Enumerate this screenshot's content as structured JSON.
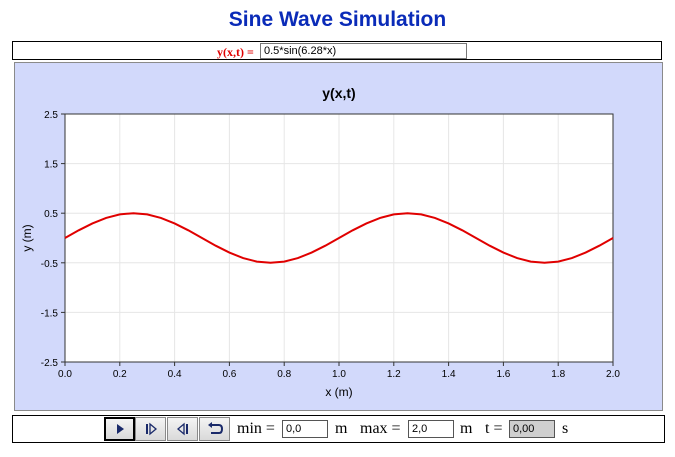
{
  "title": "Sine Wave Simulation",
  "function_bar": {
    "label": "y(x,t) =",
    "expression": "0.5*sin(6.28*x)"
  },
  "controls": {
    "buttons": [
      {
        "name": "play-button",
        "icon": "play-icon"
      },
      {
        "name": "step-forward-button",
        "icon": "step-forward-icon"
      },
      {
        "name": "step-back-button",
        "icon": "step-back-icon"
      },
      {
        "name": "reset-button",
        "icon": "reset-icon"
      }
    ],
    "min_label": "min =",
    "min_value": "0,0",
    "min_unit": "m",
    "max_label": "max =",
    "max_value": "2,0",
    "max_unit": "m",
    "t_label": "t =",
    "t_value": "0,00",
    "t_unit": "s"
  },
  "colors": {
    "title": "#0a2bb8",
    "curve": "#e00000",
    "panel": "#d2d9fb"
  },
  "chart_data": {
    "type": "line",
    "title": "y(x,t)",
    "xlabel": "x (m)",
    "ylabel": "y (m)",
    "xlim": [
      0.0,
      2.0
    ],
    "ylim": [
      -2.5,
      2.5
    ],
    "xticks": [
      "0.0",
      "0.2",
      "0.4",
      "0.6",
      "0.8",
      "1.0",
      "1.2",
      "1.4",
      "1.6",
      "1.8",
      "2.0"
    ],
    "yticks": [
      "2.5",
      "1.5",
      "0.5",
      "-0.5",
      "-1.5",
      "-2.5"
    ],
    "grid": true,
    "series": [
      {
        "x": [
          0.0,
          0.05,
          0.1,
          0.15,
          0.2,
          0.25,
          0.3,
          0.35,
          0.4,
          0.45,
          0.5,
          0.55,
          0.6,
          0.65,
          0.7,
          0.75,
          0.8,
          0.85,
          0.9,
          0.95,
          1.0,
          1.05,
          1.1,
          1.15,
          1.2,
          1.25,
          1.3,
          1.35,
          1.4,
          1.45,
          1.5,
          1.55,
          1.6,
          1.65,
          1.7,
          1.75,
          1.8,
          1.85,
          1.9,
          1.95,
          2.0
        ],
        "y": [
          0.0,
          0.155,
          0.294,
          0.405,
          0.476,
          0.5,
          0.476,
          0.405,
          0.294,
          0.155,
          0.0,
          -0.155,
          -0.294,
          -0.405,
          -0.476,
          -0.5,
          -0.476,
          -0.405,
          -0.294,
          -0.155,
          0.0,
          0.155,
          0.294,
          0.405,
          0.476,
          0.5,
          0.476,
          0.405,
          0.294,
          0.155,
          0.0,
          -0.155,
          -0.294,
          -0.405,
          -0.476,
          -0.5,
          -0.476,
          -0.405,
          -0.294,
          -0.155,
          0.0
        ]
      }
    ]
  }
}
